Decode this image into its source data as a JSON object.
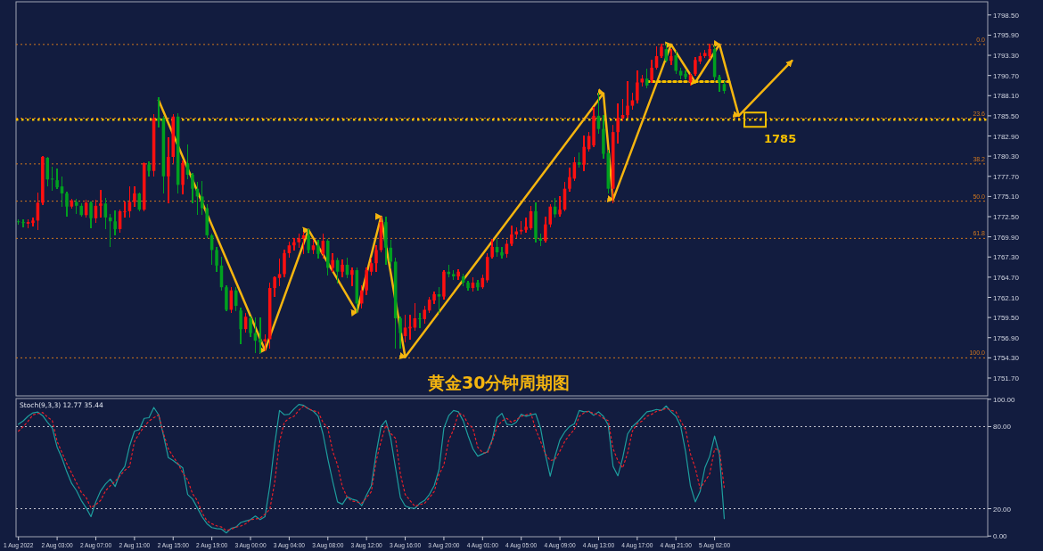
{
  "chart_data": [
    {
      "type": "candlestick",
      "tick_labels": "y",
      "categories": [
        null,
        null,
        null,
        null,
        null,
        null,
        null,
        null,
        null,
        null,
        null,
        null,
        null,
        null,
        null,
        null,
        null,
        null,
        null,
        null,
        null,
        null,
        null,
        null,
        null,
        null,
        null,
        null,
        null,
        null,
        null,
        null,
        null,
        null,
        null,
        null,
        null,
        null,
        null,
        null,
        null,
        null,
        null,
        null,
        null,
        null,
        null,
        null,
        null,
        null,
        null,
        null,
        null,
        null,
        null,
        null,
        null,
        null,
        null,
        null,
        null,
        null,
        null,
        null,
        null,
        null,
        null,
        null,
        null,
        null,
        null,
        null,
        null,
        null,
        null,
        null,
        null,
        null,
        null,
        null,
        null,
        null,
        null,
        null,
        null,
        null,
        null,
        null,
        null,
        null,
        null,
        null,
        null,
        null,
        null,
        null,
        null,
        null,
        null,
        null,
        null,
        null,
        null,
        null,
        null,
        null,
        null,
        null,
        null,
        null,
        null,
        null,
        null,
        null,
        null,
        null,
        null,
        null,
        null,
        null,
        null,
        null,
        null,
        null,
        null,
        null,
        null,
        null,
        null,
        null,
        null,
        null,
        null,
        null,
        null,
        null,
        null,
        null,
        null,
        null,
        null,
        null,
        null,
        null,
        null,
        null,
        null,
        null,
        null,
        null,
        null,
        null,
        null,
        null,
        null,
        null,
        null,
        null,
        null,
        null,
        null,
        null,
        null,
        null,
        null,
        null,
        null,
        null,
        null,
        null,
        null,
        null,
        null,
        null,
        null,
        null,
        null,
        null,
        null,
        null,
        null,
        null,
        null,
        null,
        null,
        null,
        null,
        null,
        null,
        null,
        null,
        null,
        null,
        null,
        null,
        null,
        null,
        null,
        null,
        null,
        null
      ],
      "ohlc": [
        [
          1771.9,
          1772.1,
          1771.5,
          1771.8
        ],
        [
          1771.8,
          1772.1,
          1771.2,
          1771.7
        ],
        [
          1771.6,
          1772.1,
          1771.1,
          1771.8
        ],
        [
          1771.7,
          1772.3,
          1771.3,
          1772.0
        ],
        [
          1772.0,
          1775.5,
          1770.8,
          1774.3
        ],
        [
          1774.3,
          1780.3,
          1774.1,
          1780.2
        ],
        [
          1780.1,
          1780.2,
          1776.5,
          1777.3
        ],
        [
          1777.4,
          1778.9,
          1775.9,
          1777.3
        ],
        [
          1777.2,
          1778.6,
          1776.1,
          1776.3
        ],
        [
          1776.4,
          1777.6,
          1773.8,
          1775.5
        ],
        [
          1775.5,
          1775.7,
          1772.6,
          1773.8
        ],
        [
          1773.8,
          1774.8,
          1773.6,
          1774.6
        ],
        [
          1774.4,
          1774.7,
          1772.9,
          1773.9
        ],
        [
          1773.9,
          1774.2,
          1772.6,
          1772.7
        ],
        [
          1772.7,
          1774.6,
          1772.4,
          1774.3
        ],
        [
          1774.3,
          1774.4,
          1771.1,
          1772.3
        ],
        [
          1772.3,
          1774.6,
          1771.7,
          1773.9
        ],
        [
          1773.9,
          1775.9,
          1772.5,
          1774.2
        ],
        [
          1774.2,
          1774.9,
          1770.9,
          1772.4
        ],
        [
          1772.4,
          1772.8,
          1768.6,
          1771.9
        ],
        [
          1771.9,
          1773.2,
          1770.2,
          1770.9
        ],
        [
          1770.9,
          1773.4,
          1770.5,
          1773.2
        ],
        [
          1773.1,
          1774.4,
          1772.5,
          1773.2
        ],
        [
          1773.2,
          1776.3,
          1772.4,
          1774.4
        ],
        [
          1774.4,
          1776.3,
          1773.8,
          1775.5
        ],
        [
          1775.5,
          1775.6,
          1773.3,
          1773.4
        ],
        [
          1773.4,
          1779.5,
          1773.3,
          1779.4
        ],
        [
          1779.2,
          1779.6,
          1777.7,
          1778.4
        ],
        [
          1778.4,
          1785.7,
          1777.7,
          1785.2
        ],
        [
          1785.2,
          1787.8,
          1784.0,
          1784.9
        ],
        [
          1785.2,
          1785.4,
          1775.5,
          1777.7
        ],
        [
          1777.7,
          1782.7,
          1774.3,
          1780.2
        ],
        [
          1780.2,
          1785.7,
          1779.5,
          1785.4
        ],
        [
          1785.4,
          1785.8,
          1775.5,
          1776.6
        ],
        [
          1776.6,
          1779.7,
          1775.4,
          1779.4
        ],
        [
          1779.4,
          1781.8,
          1777.4,
          1777.9
        ],
        [
          1777.9,
          1778.1,
          1774.3,
          1776.1
        ],
        [
          1776.1,
          1776.9,
          1772.8,
          1775.1
        ],
        [
          1775.1,
          1777.0,
          1772.8,
          1773.6
        ],
        [
          1773.6,
          1774.0,
          1769.8,
          1770.1
        ],
        [
          1770.1,
          1770.3,
          1766.3,
          1768.2
        ],
        [
          1768.2,
          1768.5,
          1765.4,
          1766.2
        ],
        [
          1766.2,
          1767.3,
          1763.0,
          1763.4
        ],
        [
          1763.4,
          1763.6,
          1760.4,
          1760.5
        ],
        [
          1760.5,
          1763.4,
          1760.2,
          1763.0
        ],
        [
          1763.0,
          1763.4,
          1760.4,
          1761.0
        ],
        [
          1760.4,
          1760.7,
          1756.1,
          1758.0
        ],
        [
          1758.0,
          1760.0,
          1757.6,
          1759.6
        ],
        [
          1759.4,
          1759.6,
          1757.1,
          1757.5
        ],
        [
          1757.5,
          1759.5,
          1755.0,
          1756.5
        ],
        [
          1756.7,
          1759.4,
          1755.0,
          1756.3
        ],
        [
          1756.4,
          1757.3,
          1755.2,
          1756.7
        ],
        [
          1756.7,
          1763.9,
          1755.6,
          1763.3
        ],
        [
          1763.3,
          1764.8,
          1762.2,
          1764.7
        ],
        [
          1764.6,
          1767.0,
          1763.6,
          1765.1
        ],
        [
          1765.1,
          1768.2,
          1764.8,
          1767.8
        ],
        [
          1767.8,
          1769.2,
          1767.3,
          1768.8
        ],
        [
          1768.8,
          1769.7,
          1768.2,
          1769.2
        ],
        [
          1769.2,
          1770.3,
          1768.5,
          1769.7
        ],
        [
          1769.7,
          1770.5,
          1767.7,
          1770.1
        ],
        [
          1770.1,
          1770.8,
          1767.9,
          1768.2
        ],
        [
          1768.2,
          1769.4,
          1767.7,
          1768.8
        ],
        [
          1768.8,
          1769.4,
          1767.1,
          1767.7
        ],
        [
          1767.7,
          1770.3,
          1767.1,
          1769.4
        ],
        [
          1769.4,
          1769.6,
          1765.0,
          1765.9
        ],
        [
          1765.9,
          1767.7,
          1765.4,
          1766.9
        ],
        [
          1766.9,
          1767.1,
          1763.9,
          1765.4
        ],
        [
          1765.4,
          1766.9,
          1764.8,
          1766.3
        ],
        [
          1766.3,
          1767.1,
          1764.6,
          1765.0
        ],
        [
          1765.0,
          1765.9,
          1763.6,
          1765.6
        ],
        [
          1765.6,
          1765.9,
          1760.2,
          1761.3
        ],
        [
          1761.3,
          1763.6,
          1760.7,
          1763.0
        ],
        [
          1763.0,
          1765.9,
          1762.5,
          1765.6
        ],
        [
          1765.4,
          1767.1,
          1765.0,
          1766.5
        ],
        [
          1766.5,
          1768.8,
          1765.4,
          1768.2
        ],
        [
          1768.2,
          1772.5,
          1768.0,
          1771.8
        ],
        [
          1771.8,
          1772.5,
          1766.4,
          1768.5
        ],
        [
          1768.5,
          1769.4,
          1765.9,
          1766.7
        ],
        [
          1766.7,
          1767.1,
          1755.6,
          1759.4
        ],
        [
          1759.4,
          1759.6,
          1755.6,
          1757.5
        ],
        [
          1757.1,
          1759.8,
          1756.4,
          1758.2
        ],
        [
          1758.1,
          1759.8,
          1756.7,
          1758.3
        ],
        [
          1758.2,
          1761.3,
          1757.9,
          1759.4
        ],
        [
          1759.4,
          1760.0,
          1758.2,
          1759.3
        ],
        [
          1759.3,
          1761.0,
          1758.8,
          1760.5
        ],
        [
          1760.4,
          1762.1,
          1760.2,
          1761.8
        ],
        [
          1761.7,
          1762.8,
          1761.3,
          1762.5
        ],
        [
          1762.5,
          1763.4,
          1760.0,
          1762.2
        ],
        [
          1762.2,
          1765.6,
          1761.9,
          1765.4
        ],
        [
          1765.4,
          1766.2,
          1764.8,
          1765.1
        ],
        [
          1765.1,
          1765.6,
          1764.4,
          1764.8
        ],
        [
          1764.8,
          1765.7,
          1764.4,
          1765.4
        ],
        [
          1764.8,
          1765.1,
          1763.6,
          1764.0
        ],
        [
          1764.0,
          1764.2,
          1763.0,
          1763.3
        ],
        [
          1763.3,
          1764.6,
          1762.9,
          1764.0
        ],
        [
          1764.0,
          1764.3,
          1763.0,
          1763.4
        ],
        [
          1763.4,
          1765.0,
          1763.2,
          1764.6
        ],
        [
          1764.3,
          1767.7,
          1764.0,
          1767.3
        ],
        [
          1767.3,
          1769.6,
          1767.1,
          1768.6
        ],
        [
          1768.6,
          1769.6,
          1767.4,
          1767.9
        ],
        [
          1767.9,
          1768.5,
          1767.1,
          1767.5
        ],
        [
          1767.7,
          1769.4,
          1767.3,
          1769.0
        ],
        [
          1769.0,
          1771.3,
          1768.8,
          1770.2
        ],
        [
          1770.2,
          1771.1,
          1769.8,
          1770.6
        ],
        [
          1770.6,
          1771.9,
          1770.3,
          1770.8
        ],
        [
          1770.8,
          1772.3,
          1770.5,
          1771.2
        ],
        [
          1771.0,
          1773.8,
          1770.8,
          1773.2
        ],
        [
          1773.2,
          1774.3,
          1769.2,
          1769.7
        ],
        [
          1769.7,
          1770.3,
          1768.8,
          1769.4
        ],
        [
          1769.4,
          1772.5,
          1769.2,
          1771.5
        ],
        [
          1771.5,
          1774.0,
          1771.2,
          1773.8
        ],
        [
          1773.8,
          1774.9,
          1772.5,
          1772.8
        ],
        [
          1772.8,
          1775.1,
          1772.6,
          1773.4
        ],
        [
          1773.4,
          1776.9,
          1773.2,
          1776.1
        ],
        [
          1776.1,
          1778.8,
          1775.8,
          1777.6
        ],
        [
          1777.4,
          1780.1,
          1777.2,
          1779.5
        ],
        [
          1779.5,
          1780.7,
          1778.9,
          1779.2
        ],
        [
          1779.2,
          1782.9,
          1778.4,
          1781.5
        ],
        [
          1781.2,
          1783.4,
          1780.9,
          1782.9
        ],
        [
          1781.7,
          1786.6,
          1781.5,
          1785.5
        ],
        [
          1785.5,
          1788.4,
          1783.2,
          1783.8
        ],
        [
          1783.8,
          1785.5,
          1780.0,
          1780.6
        ],
        [
          1780.7,
          1781.1,
          1775.5,
          1776.1
        ],
        [
          1776.1,
          1784.3,
          1774.3,
          1783.4
        ],
        [
          1783.4,
          1787.0,
          1782.0,
          1785.2
        ],
        [
          1785.2,
          1787.6,
          1784.8,
          1785.6
        ],
        [
          1785.6,
          1789.9,
          1785.3,
          1786.8
        ],
        [
          1786.8,
          1788.4,
          1786.4,
          1787.5
        ],
        [
          1787.5,
          1791.3,
          1787.2,
          1789.8
        ],
        [
          1789.8,
          1790.7,
          1789.3,
          1790.3
        ],
        [
          1790.3,
          1791.5,
          1789.1,
          1789.4
        ],
        [
          1790.1,
          1792.7,
          1789.8,
          1791.7
        ],
        [
          1791.7,
          1794.4,
          1791.5,
          1793.2
        ],
        [
          1793.2,
          1794.7,
          1793.0,
          1794.4
        ],
        [
          1794.1,
          1794.7,
          1792.4,
          1792.6
        ],
        [
          1792.6,
          1794.1,
          1792.1,
          1793.2
        ],
        [
          1793.3,
          1793.8,
          1790.9,
          1791.3
        ],
        [
          1791.3,
          1791.6,
          1790.3,
          1790.7
        ],
        [
          1790.9,
          1791.3,
          1790.3,
          1790.5
        ],
        [
          1789.8,
          1791.0,
          1789.5,
          1790.8
        ],
        [
          1790.9,
          1793.0,
          1790.7,
          1792.7
        ],
        [
          1792.5,
          1793.6,
          1792.2,
          1793.2
        ],
        [
          1793.2,
          1793.9,
          1793.0,
          1793.6
        ],
        [
          1793.2,
          1794.7,
          1792.9,
          1794.1
        ],
        [
          1794.1,
          1794.5,
          1790.1,
          1790.5
        ],
        [
          1790.5,
          1790.7,
          1788.6,
          1789.8
        ],
        [
          1789.6,
          1789.9,
          1788.4,
          1788.7
        ],
        null,
        null,
        null,
        null,
        null,
        null,
        null,
        null,
        null,
        null,
        null,
        null,
        null,
        null,
        null,
        null,
        null,
        null,
        null,
        null,
        null,
        null,
        null,
        null,
        null,
        null,
        null,
        null,
        null,
        null,
        null,
        null,
        null,
        null,
        null,
        null,
        null,
        null,
        null,
        null,
        null,
        null,
        null,
        null,
        null,
        null,
        null,
        null,
        null,
        null,
        null,
        null,
        null,
        null
      ],
      "ylim": [
        1749.4,
        1800.2
      ],
      "yticks": [
        {
          "value": 1798.5,
          "label": "1798.50"
        },
        {
          "value": 1795.9,
          "label": "1795.90"
        },
        {
          "value": 1793.3,
          "label": "1793.30"
        },
        {
          "value": 1790.7,
          "label": "1790.70"
        },
        {
          "value": 1788.1,
          "label": "1788.10"
        },
        {
          "value": 1785.5,
          "label": "1785.50"
        },
        {
          "value": 1782.9,
          "label": "1782.90"
        },
        {
          "value": 1780.3,
          "label": "1780.30"
        },
        {
          "value": 1777.7,
          "label": "1777.70"
        },
        {
          "value": 1775.1,
          "label": "1775.10"
        },
        {
          "value": 1772.5,
          "label": "1772.50"
        },
        {
          "value": 1769.9,
          "label": "1769.90"
        },
        {
          "value": 1767.3,
          "label": "1767.30"
        },
        {
          "value": 1764.7,
          "label": "1764.70"
        },
        {
          "value": 1762.1,
          "label": "1762.10"
        },
        {
          "value": 1759.5,
          "label": "1759.50"
        },
        {
          "value": 1756.9,
          "label": "1756.90"
        },
        {
          "value": 1754.3,
          "label": "1754.30"
        },
        {
          "value": 1751.7,
          "label": "1751.70"
        }
      ],
      "ref_lines": [
        {
          "axis": "y",
          "value": 1794.7,
          "color": "#d2781e",
          "line_style": "dotted"
        },
        {
          "axis": "y",
          "value": 1785.2,
          "color": "#d2781e",
          "line_style": "dotted"
        },
        {
          "axis": "y",
          "value": 1779.3,
          "color": "#d2781e",
          "line_style": "dotted"
        },
        {
          "axis": "y",
          "value": 1774.5,
          "color": "#d2781e",
          "line_style": "dotted"
        },
        {
          "axis": "y",
          "value": 1769.7,
          "color": "#d2781e",
          "line_style": "dotted"
        },
        {
          "axis": "y",
          "value": 1754.3,
          "color": "#d2781e",
          "line_style": "dotted"
        },
        {
          "axis": "y",
          "value": 1785,
          "label": "1785",
          "color": "#f5c000",
          "line_style": "dotted"
        }
      ],
      "series": [
        {
          "type": "line",
          "color": "#f5b50f",
          "line_style": "solid",
          "values": [
            null,
            null,
            null,
            null,
            null,
            null,
            null,
            null,
            null,
            null,
            null,
            null,
            null,
            null,
            null,
            null,
            null,
            null,
            null,
            null,
            null,
            null,
            null,
            null,
            null,
            null,
            null,
            null,
            null,
            1787.5,
            null,
            null,
            null,
            null,
            null,
            null,
            null,
            null,
            null,
            null,
            null,
            null,
            null,
            null,
            null,
            null,
            null,
            null,
            null,
            null,
            null,
            1755.3,
            null,
            null,
            null,
            null,
            null,
            null,
            null,
            null,
            1770.8,
            null,
            null,
            null,
            null,
            null,
            null,
            null,
            null,
            null,
            1760.2,
            null,
            null,
            null,
            null,
            1772.5,
            null,
            null,
            null,
            null,
            1754.4,
            null,
            null,
            null,
            null,
            null,
            null,
            null,
            null,
            null,
            null,
            null,
            null,
            null,
            null,
            null,
            null,
            null,
            null,
            null,
            null,
            null,
            null,
            null,
            null,
            null,
            null,
            null,
            null,
            null,
            null,
            null,
            null,
            null,
            null,
            null,
            null,
            null,
            null,
            null,
            null,
            1788.4,
            null,
            1774.7,
            null,
            null,
            null,
            null,
            null,
            null,
            null,
            null,
            null,
            null,
            null,
            1794.7,
            null,
            null,
            null,
            null,
            1789.8,
            null,
            null,
            null,
            null,
            1794.7,
            null,
            null,
            null,
            1785.5,
            null,
            null,
            null,
            null,
            null,
            null,
            null,
            null,
            null,
            null,
            1792.6,
            null,
            null,
            null,
            null,
            null,
            null,
            null,
            null,
            null,
            null,
            null,
            null,
            null,
            null,
            null,
            null,
            null,
            null,
            null,
            null,
            null,
            null,
            null,
            null,
            null,
            null,
            null,
            null,
            null,
            null,
            null,
            null,
            null,
            null,
            null,
            null,
            null,
            null,
            null,
            null
          ]
        },
        {
          "type": "line",
          "color": "#f5c000",
          "line_style": "dotted",
          "values": [
            null,
            null,
            null,
            null,
            null,
            null,
            null,
            null,
            null,
            null,
            null,
            null,
            null,
            null,
            null,
            null,
            null,
            null,
            null,
            null,
            null,
            null,
            null,
            null,
            null,
            null,
            null,
            null,
            null,
            null,
            null,
            null,
            null,
            null,
            null,
            null,
            null,
            null,
            null,
            null,
            null,
            null,
            null,
            null,
            null,
            null,
            null,
            null,
            null,
            null,
            null,
            null,
            null,
            null,
            null,
            null,
            null,
            null,
            null,
            null,
            null,
            null,
            null,
            null,
            null,
            null,
            null,
            null,
            null,
            null,
            null,
            null,
            null,
            null,
            null,
            null,
            null,
            null,
            null,
            null,
            null,
            null,
            null,
            null,
            null,
            null,
            null,
            null,
            null,
            null,
            null,
            null,
            null,
            null,
            null,
            null,
            null,
            null,
            null,
            null,
            null,
            null,
            null,
            null,
            null,
            null,
            null,
            null,
            null,
            null,
            null,
            null,
            null,
            null,
            null,
            null,
            null,
            null,
            null,
            null,
            null,
            null,
            null,
            null,
            null,
            null,
            null,
            null,
            null,
            null,
            1789.9,
            null,
            null,
            null,
            null,
            null,
            null,
            null,
            null,
            null,
            null,
            null,
            null,
            null,
            null,
            null,
            null,
            1789.9,
            null,
            null,
            null,
            null,
            null,
            null,
            null,
            null,
            null,
            null,
            null,
            null,
            null,
            null,
            null,
            null,
            null,
            null,
            null,
            null,
            null,
            null,
            null,
            null,
            null,
            null,
            null,
            null,
            null,
            null,
            null,
            null,
            null,
            null,
            null,
            null,
            null,
            null,
            null,
            null,
            null,
            null,
            null,
            null,
            null,
            null,
            null,
            null,
            null,
            null,
            null,
            null,
            null
          ]
        }
      ],
      "annotations": [
        "黄金30分钟周期图",
        {
          "text": "0.0",
          "y": 1794.7
        },
        {
          "text": "23.6",
          "y": 1785.2
        },
        {
          "text": "38.2",
          "y": 1779.3
        },
        {
          "text": "50.0",
          "y": 1774.5
        },
        {
          "text": "61.8",
          "y": 1769.7
        },
        {
          "text": "100.0",
          "y": 1754.3
        }
      ]
    },
    {
      "type": "line",
      "title": "Stoch(9,3,3) 12.77 35.44",
      "categories": [
        "1 Aug 2022",
        null,
        null,
        null,
        null,
        null,
        null,
        null,
        "2 Aug 03:00",
        null,
        null,
        null,
        null,
        null,
        null,
        null,
        "2 Aug 07:00",
        null,
        null,
        null,
        null,
        null,
        null,
        null,
        "2 Aug 11:00",
        null,
        null,
        null,
        null,
        null,
        null,
        null,
        "2 Aug 15:00",
        null,
        null,
        null,
        null,
        null,
        null,
        null,
        "2 Aug 19:00",
        null,
        null,
        null,
        null,
        null,
        null,
        null,
        "3 Aug 00:00",
        null,
        null,
        null,
        null,
        null,
        null,
        null,
        "3 Aug 04:00",
        null,
        null,
        null,
        null,
        null,
        null,
        null,
        "3 Aug 08:00",
        null,
        null,
        null,
        null,
        null,
        null,
        null,
        "3 Aug 12:00",
        null,
        null,
        null,
        null,
        null,
        null,
        null,
        "3 Aug 16:00",
        null,
        null,
        null,
        null,
        null,
        null,
        null,
        "3 Aug 20:00",
        null,
        null,
        null,
        null,
        null,
        null,
        null,
        "4 Aug 01:00",
        null,
        null,
        null,
        null,
        null,
        null,
        null,
        "4 Aug 05:00",
        null,
        null,
        null,
        null,
        null,
        null,
        null,
        "4 Aug 09:00",
        null,
        null,
        null,
        null,
        null,
        null,
        null,
        "4 Aug 13:00",
        null,
        null,
        null,
        null,
        null,
        null,
        null,
        "4 Aug 17:00",
        null,
        null,
        null,
        null,
        null,
        null,
        null,
        "4 Aug 21:00",
        null,
        null,
        null,
        null,
        null,
        null,
        null,
        "5 Aug 02:00",
        null,
        null,
        null,
        null,
        null,
        null,
        null,
        null,
        null,
        null,
        null,
        null,
        null,
        null,
        null,
        null,
        null,
        null,
        null,
        null,
        null,
        null,
        null,
        null,
        null,
        null,
        null,
        null,
        null,
        null,
        null,
        null,
        null,
        null,
        null,
        null,
        null,
        null,
        null,
        null,
        null,
        null,
        null,
        null,
        null,
        null,
        null,
        null,
        null,
        null,
        null,
        null,
        null,
        null,
        null,
        null
      ],
      "ylim": [
        -0.5,
        100.5
      ],
      "yticks": [
        {
          "value": 100,
          "label": "100.00"
        },
        {
          "value": 80,
          "label": "80.00"
        },
        {
          "value": 20,
          "label": "20.00"
        },
        {
          "value": 0,
          "label": "0.00"
        }
      ],
      "ref_lines": [
        {
          "axis": "y",
          "value": 80,
          "color": "#c8c8d0",
          "line_style": "dotted"
        },
        {
          "axis": "y",
          "value": 20,
          "color": "#c8c8d0",
          "line_style": "dotted"
        }
      ],
      "series": [
        {
          "color": "#1e9e9e",
          "line_style": "solid",
          "values": [
            81.7,
            84.2,
            87.6,
            90.0,
            90.6,
            88.0,
            83.2,
            78.9,
            65.0,
            57.0,
            47.0,
            38.5,
            33.2,
            26.0,
            20.6,
            14.2,
            25.0,
            33.0,
            38.0,
            41.6,
            36.2,
            45.9,
            50.9,
            66.0,
            76.7,
            77.8,
            86.0,
            86.5,
            94.0,
            88.6,
            73.5,
            57.3,
            55.2,
            52.5,
            49.8,
            30.4,
            27.1,
            20.6,
            14.0,
            9.0,
            6.2,
            5.5,
            5.1,
            2.3,
            5.6,
            6.6,
            9.9,
            11.0,
            12.0,
            14.6,
            12.0,
            14.2,
            36.8,
            67.0,
            91.8,
            88.6,
            89.0,
            92.9,
            96.2,
            95.5,
            93.0,
            91.2,
            87.5,
            74.6,
            56.3,
            40.0,
            25.0,
            23.2,
            28.6,
            27.0,
            26.0,
            22.2,
            30.0,
            36.8,
            60.6,
            80.0,
            84.5,
            71.4,
            49.8,
            28.2,
            22.0,
            20.6,
            20.2,
            23.9,
            26.0,
            30.4,
            36.8,
            48.7,
            78.9,
            88.0,
            91.8,
            90.8,
            84.3,
            73.5,
            63.8,
            58.4,
            60.0,
            61.6,
            70.3,
            86.5,
            89.7,
            81.7,
            81.1,
            83.2,
            89.0,
            87.5,
            88.5,
            89.3,
            78.9,
            59.5,
            43.7,
            58.4,
            70.3,
            76.1,
            80.0,
            82.1,
            91.8,
            90.8,
            91.2,
            88.2,
            90.8,
            87.5,
            81.1,
            50.9,
            44.0,
            57.3,
            74.6,
            80.0,
            83.2,
            87.0,
            90.8,
            91.5,
            92.5,
            91.8,
            95.1,
            90.8,
            87.5,
            80.0,
            61.6,
            36.8,
            25.0,
            32.5,
            50.0,
            58.4,
            73.1,
            59.5,
            12.8,
            null,
            null,
            null,
            null,
            null,
            null,
            null,
            null,
            null,
            null,
            null,
            null,
            null,
            null,
            null,
            null,
            null,
            null,
            null,
            null,
            null,
            null,
            null,
            null,
            null,
            null,
            null,
            null,
            null,
            null,
            null,
            null,
            null,
            null,
            null,
            null,
            null,
            null,
            null,
            null,
            null,
            null,
            null,
            null,
            null,
            null,
            null,
            null,
            null,
            null,
            null,
            null,
            null,
            null
          ]
        },
        {
          "color": "#e8202a",
          "line_style": "dotted",
          "values": [
            76.7,
            80.0,
            84.0,
            88.6,
            89.5,
            90.3,
            87.0,
            84.3,
            69.2,
            61.0,
            53.0,
            46.0,
            39.0,
            32.0,
            28.2,
            20.6,
            23.0,
            26.0,
            33.0,
            36.8,
            40.0,
            44.0,
            48.0,
            50.9,
            69.2,
            75.0,
            80.0,
            84.0,
            86.5,
            88.6,
            75.0,
            63.8,
            58.0,
            53.0,
            46.0,
            41.1,
            31.0,
            26.0,
            17.0,
            11.0,
            9.0,
            7.5,
            6.6,
            4.0,
            5.0,
            6.5,
            7.3,
            9.0,
            12.0,
            12.5,
            13.1,
            16.0,
            19.6,
            39.0,
            69.2,
            83.2,
            86.0,
            87.5,
            92.0,
            95.1,
            93.0,
            91.5,
            90.8,
            83.0,
            78.9,
            62.0,
            52.0,
            36.0,
            28.2,
            25.6,
            25.0,
            24.0,
            28.0,
            32.5,
            55.0,
            69.2,
            81.1,
            75.0,
            71.4,
            45.5,
            30.4,
            26.0,
            21.7,
            23.0,
            23.9,
            28.0,
            32.5,
            45.0,
            52.0,
            70.0,
            77.8,
            89.7,
            88.6,
            82.0,
            78.9,
            64.9,
            61.0,
            60.6,
            69.2,
            80.0,
            84.0,
            86.0,
            83.2,
            85.0,
            87.5,
            88.5,
            89.7,
            78.0,
            69.2,
            60.0,
            55.2,
            56.0,
            62.0,
            69.2,
            74.0,
            77.8,
            87.5,
            90.0,
            91.2,
            89.5,
            88.6,
            86.0,
            84.3,
            63.8,
            55.0,
            49.8,
            60.6,
            76.7,
            82.1,
            84.0,
            87.5,
            89.0,
            91.2,
            92.0,
            93.4,
            92.0,
            90.8,
            84.0,
            77.8,
            60.0,
            49.8,
            34.7,
            40.0,
            45.5,
            63.8,
            62.7,
            35.4,
            null,
            null,
            null,
            null,
            null,
            null,
            null,
            null,
            null,
            null,
            null,
            null,
            null,
            null,
            null,
            null,
            null,
            null,
            null,
            null,
            null,
            null,
            null,
            null,
            null,
            null,
            null,
            null,
            null,
            null,
            null,
            null,
            null,
            null,
            null,
            null,
            null,
            null,
            null,
            null,
            null,
            null,
            null,
            null,
            null,
            null,
            null,
            null,
            null,
            null,
            null,
            null,
            null,
            null
          ]
        }
      ]
    }
  ]
}
